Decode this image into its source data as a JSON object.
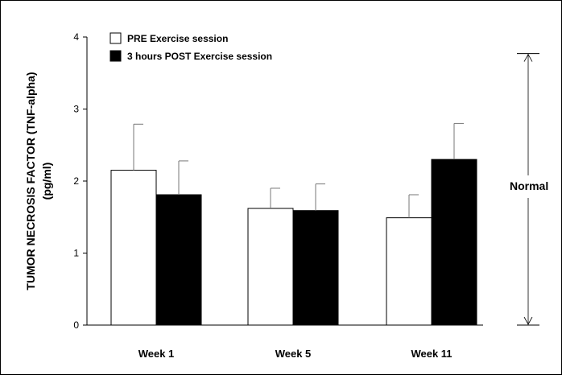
{
  "chart_data": {
    "type": "bar",
    "categories": [
      "Week 1",
      "Week 5",
      "Week 11"
    ],
    "series": [
      {
        "name": "PRE Exercise session",
        "color": "#ffffff",
        "values": [
          2.15,
          1.62,
          1.49
        ],
        "error": [
          0.64,
          0.28,
          0.32
        ]
      },
      {
        "name": "3 hours POST Exercise session",
        "color": "#000000",
        "values": [
          1.81,
          1.59,
          2.3
        ],
        "error": [
          0.47,
          0.37,
          0.5
        ]
      }
    ],
    "ylabel_line1": "TUMOR NECROSIS FACTOR (TNF-alpha)",
    "ylabel_line2": "(pg/ml)",
    "ylim": [
      0,
      4
    ],
    "yticks": [
      0,
      1,
      2,
      3,
      4
    ],
    "grid": false,
    "legend_position": "top-left",
    "annotation": {
      "label": "Normal",
      "range": [
        0,
        3.77
      ]
    }
  }
}
